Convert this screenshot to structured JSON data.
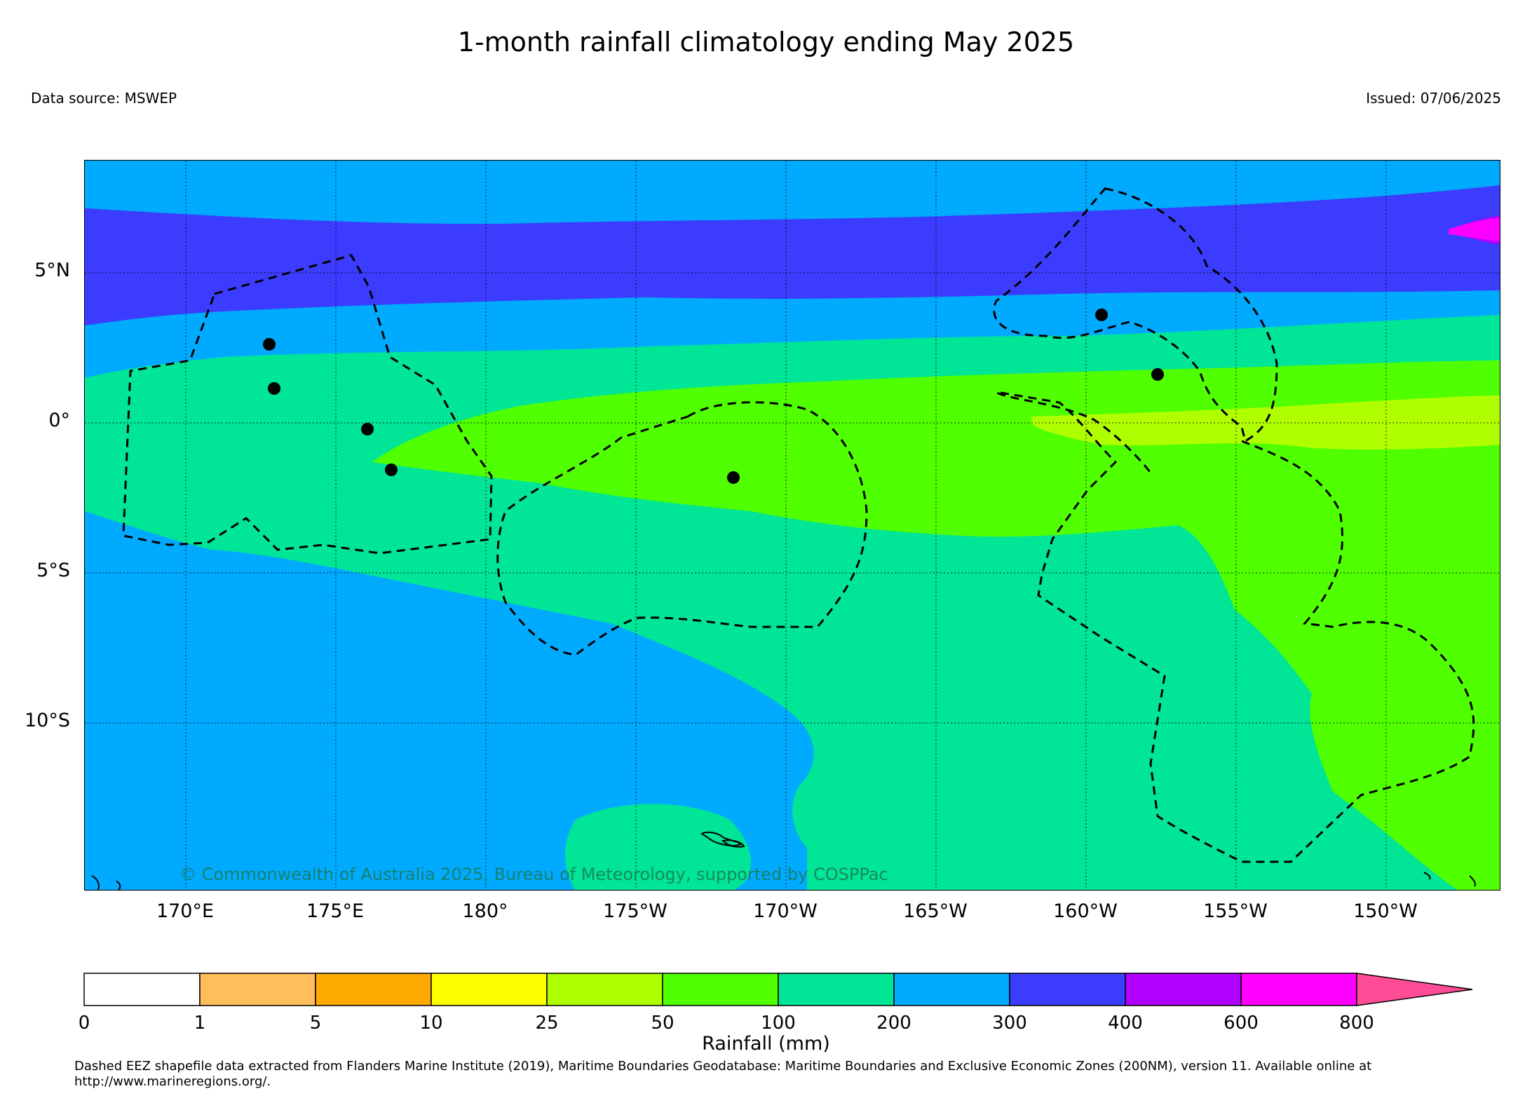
{
  "title": "1-month rainfall climatology ending May 2025",
  "data_source": "Data source: MSWEP",
  "issued": "Issued: 07/06/2025",
  "copyright": "© Commonwealth of Australia 2025, Bureau of Meteorology, supported by COSPPac",
  "lat_labels": [
    "5°N",
    "0°",
    "5°S",
    "10°S"
  ],
  "lon_labels": [
    "170°E",
    "175°E",
    "180°",
    "175°W",
    "170°W",
    "165°W",
    "160°W",
    "155°W",
    "150°W"
  ],
  "colorbar": {
    "label": "Rainfall (mm)",
    "ticks": [
      "0",
      "1",
      "5",
      "10",
      "25",
      "50",
      "100",
      "200",
      "300",
      "400",
      "600",
      "800"
    ],
    "colors": [
      "#ffffff",
      "#ffbe5a",
      "#ffaa00",
      "#ffff00",
      "#b0ff00",
      "#50ff00",
      "#00e596",
      "#00aaff",
      "#3c3cff",
      "#b000ff",
      "#ff00ff",
      "#ff4c96"
    ]
  },
  "footnote": "Dashed EEZ shapefile data extracted from Flanders Marine Institute (2019), Maritime Boundaries Geodatabase: Maritime Boundaries and Exclusive Economic Zones (200NM), version 11. Available online at http://www.marineregions.org/."
}
